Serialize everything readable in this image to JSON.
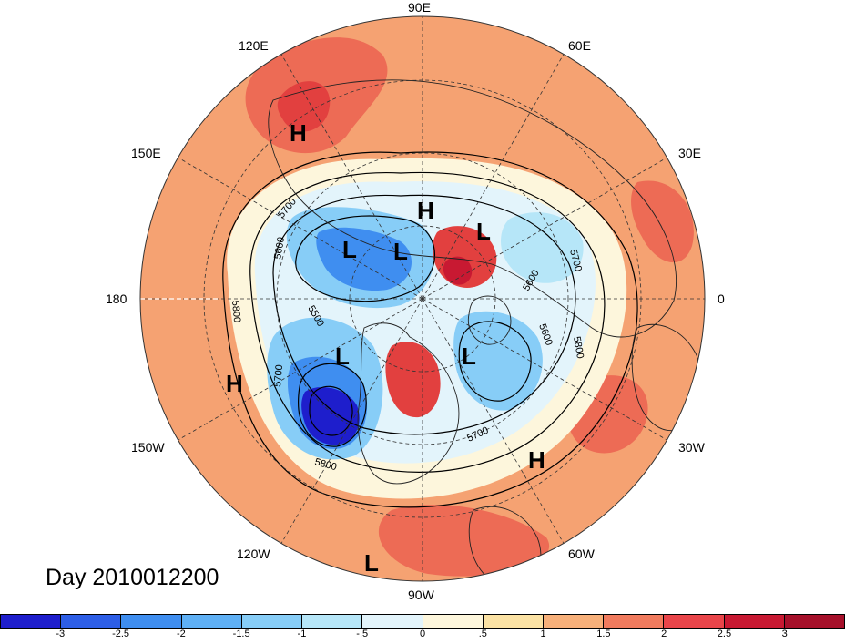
{
  "map": {
    "projection": "polar-stereographic-north",
    "longitude_labels": [
      {
        "text": "90E",
        "angle_deg": 90
      },
      {
        "text": "120E",
        "angle_deg": 120
      },
      {
        "text": "60E",
        "angle_deg": 60
      },
      {
        "text": "150E",
        "angle_deg": 150
      },
      {
        "text": "30E",
        "angle_deg": 30
      },
      {
        "text": "180",
        "angle_deg": 180
      },
      {
        "text": "0",
        "angle_deg": 0
      },
      {
        "text": "150W",
        "angle_deg": 210
      },
      {
        "text": "30W",
        "angle_deg": 330
      },
      {
        "text": "120W",
        "angle_deg": 240
      },
      {
        "text": "60W",
        "angle_deg": 300
      },
      {
        "text": "90W",
        "angle_deg": 270
      }
    ],
    "pressure_centers": [
      {
        "type": "H",
        "id": "h-north-siberia"
      },
      {
        "type": "H",
        "id": "h-arctic"
      },
      {
        "type": "L",
        "id": "l-east-siberia"
      },
      {
        "type": "L",
        "id": "l-east-siberia-2"
      },
      {
        "type": "L",
        "id": "l-scandinavia"
      },
      {
        "type": "L",
        "id": "l-gulf-alaska"
      },
      {
        "type": "L",
        "id": "l-hudson"
      },
      {
        "type": "H",
        "id": "h-west-pacific"
      },
      {
        "type": "H",
        "id": "h-atlantic"
      },
      {
        "type": "L",
        "id": "l-south"
      }
    ],
    "contour_labels": [
      "5700",
      "5600",
      "5500",
      "5800",
      "5700",
      "5600",
      "5800",
      "5700",
      "5800",
      "5600",
      "5700"
    ]
  },
  "footer": {
    "day_label": "Day 2010012200"
  },
  "colorbar": {
    "ticks": [
      "-3",
      "-2.5",
      "-2",
      "-1.5",
      "-1",
      "-.5",
      "0",
      ".5",
      "1",
      "1.5",
      "2",
      "2.5",
      "3"
    ],
    "colors": [
      "#1e1ecc",
      "#2d5ee6",
      "#3f8ef0",
      "#5fb0f5",
      "#87cdf7",
      "#b6e6f8",
      "#e3f4fb",
      "#fdf6dc",
      "#fbe2a4",
      "#f7b07a",
      "#f17b5e",
      "#e9454a",
      "#c81932",
      "#a6102a"
    ]
  }
}
